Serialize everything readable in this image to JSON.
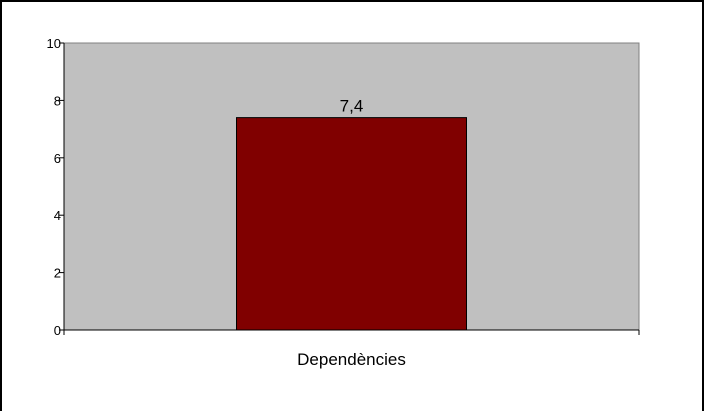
{
  "chart_data": {
    "type": "bar",
    "categories": [
      "Dependències"
    ],
    "values": [
      7.4
    ],
    "data_labels": [
      "7,4"
    ],
    "ylim": [
      0,
      10
    ],
    "yticks": [
      0,
      2,
      4,
      6,
      8,
      10
    ],
    "ytick_labels": [
      "0",
      "2",
      "4",
      "6",
      "8",
      "10"
    ],
    "grid": false,
    "legend": "none"
  },
  "colors": {
    "plot_background": "#c0c0c0",
    "bar_fill": "#800000",
    "bar_stroke": "#000000",
    "axis": "#000000",
    "frame": "#000000"
  }
}
